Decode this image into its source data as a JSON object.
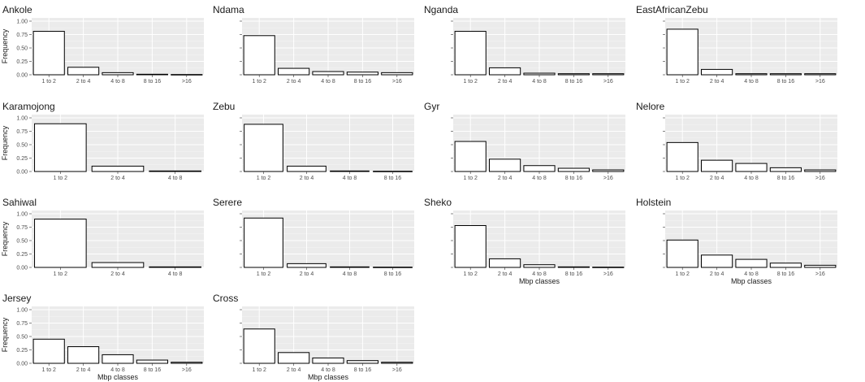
{
  "chart_data": {
    "type": "bar",
    "ylim": [
      0,
      1
    ],
    "yticks": [
      "0.00",
      "0.25",
      "0.50",
      "0.75",
      "1.00"
    ],
    "ylabel": "Frequency",
    "xlabel": "Mbp classes",
    "grid": true,
    "panel_background": "#ebebeb",
    "bar_fill": "#ffffff",
    "bar_stroke": "#000000",
    "panels": [
      {
        "title": "Ankole",
        "categories": [
          "1 to 2",
          "2 to 4",
          "4 to 8",
          "8 to 16",
          ">16"
        ],
        "values": [
          0.81,
          0.14,
          0.04,
          0.01,
          0.005
        ]
      },
      {
        "title": "Ndama",
        "categories": [
          "1 to 2",
          "2 to 4",
          "4 to 8",
          "8 to 16",
          ">16"
        ],
        "values": [
          0.73,
          0.12,
          0.06,
          0.05,
          0.04
        ]
      },
      {
        "title": "Nganda",
        "categories": [
          "1 to 2",
          "2 to 4",
          "4 to 8",
          "8 to 16",
          ">16"
        ],
        "values": [
          0.81,
          0.13,
          0.03,
          0.02,
          0.02
        ]
      },
      {
        "title": "EastAfricanZebu",
        "categories": [
          "1 to 2",
          "2 to 4",
          "4 to 8",
          "8 to 16",
          ">16"
        ],
        "values": [
          0.85,
          0.1,
          0.02,
          0.02,
          0.02
        ]
      },
      {
        "title": "Karamojong",
        "categories": [
          "1 to 2",
          "2 to 4",
          "4 to 8"
        ],
        "values": [
          0.89,
          0.1,
          0.01
        ]
      },
      {
        "title": "Zebu",
        "categories": [
          "1 to 2",
          "2 to 4",
          "4 to 8",
          "8 to 16"
        ],
        "values": [
          0.88,
          0.1,
          0.01,
          0.005
        ]
      },
      {
        "title": "Gyr",
        "categories": [
          "1 to 2",
          "2 to 4",
          "4 to 8",
          "8 to 16",
          ">16"
        ],
        "values": [
          0.56,
          0.23,
          0.11,
          0.06,
          0.03
        ]
      },
      {
        "title": "Nelore",
        "categories": [
          "1 to 2",
          "2 to 4",
          "4 to 8",
          "8 to 16",
          ">16"
        ],
        "values": [
          0.54,
          0.21,
          0.15,
          0.07,
          0.03
        ]
      },
      {
        "title": "Sahiwal",
        "categories": [
          "1 to 2",
          "2 to 4",
          "4 to 8"
        ],
        "values": [
          0.9,
          0.09,
          0.01
        ]
      },
      {
        "title": "Serere",
        "categories": [
          "1 to 2",
          "2 to 4",
          "4 to 8",
          "8 to 16"
        ],
        "values": [
          0.92,
          0.07,
          0.01,
          0.005
        ]
      },
      {
        "title": "Sheko",
        "categories": [
          "1 to 2",
          "2 to 4",
          "4 to 8",
          "8 to 16",
          ">16"
        ],
        "values": [
          0.78,
          0.16,
          0.05,
          0.01,
          0.005
        ],
        "xlabel": "Mbp classes"
      },
      {
        "title": "Holstein",
        "categories": [
          "1 to 2",
          "2 to 4",
          "4 to 8",
          "8 to 16",
          ">16"
        ],
        "values": [
          0.51,
          0.23,
          0.15,
          0.08,
          0.04
        ],
        "xlabel": "Mbp classes"
      },
      {
        "title": "Jersey",
        "categories": [
          "1 to 2",
          "2 to 4",
          "4 to 8",
          "8 to 16",
          ">16"
        ],
        "values": [
          0.45,
          0.31,
          0.16,
          0.06,
          0.02
        ],
        "xlabel": "Mbp classes"
      },
      {
        "title": "Cross",
        "categories": [
          "1 to 2",
          "2 to 4",
          "4 to 8",
          "8 to 16",
          ">16"
        ],
        "values": [
          0.64,
          0.2,
          0.1,
          0.05,
          0.02
        ],
        "xlabel": "Mbp classes"
      }
    ]
  }
}
